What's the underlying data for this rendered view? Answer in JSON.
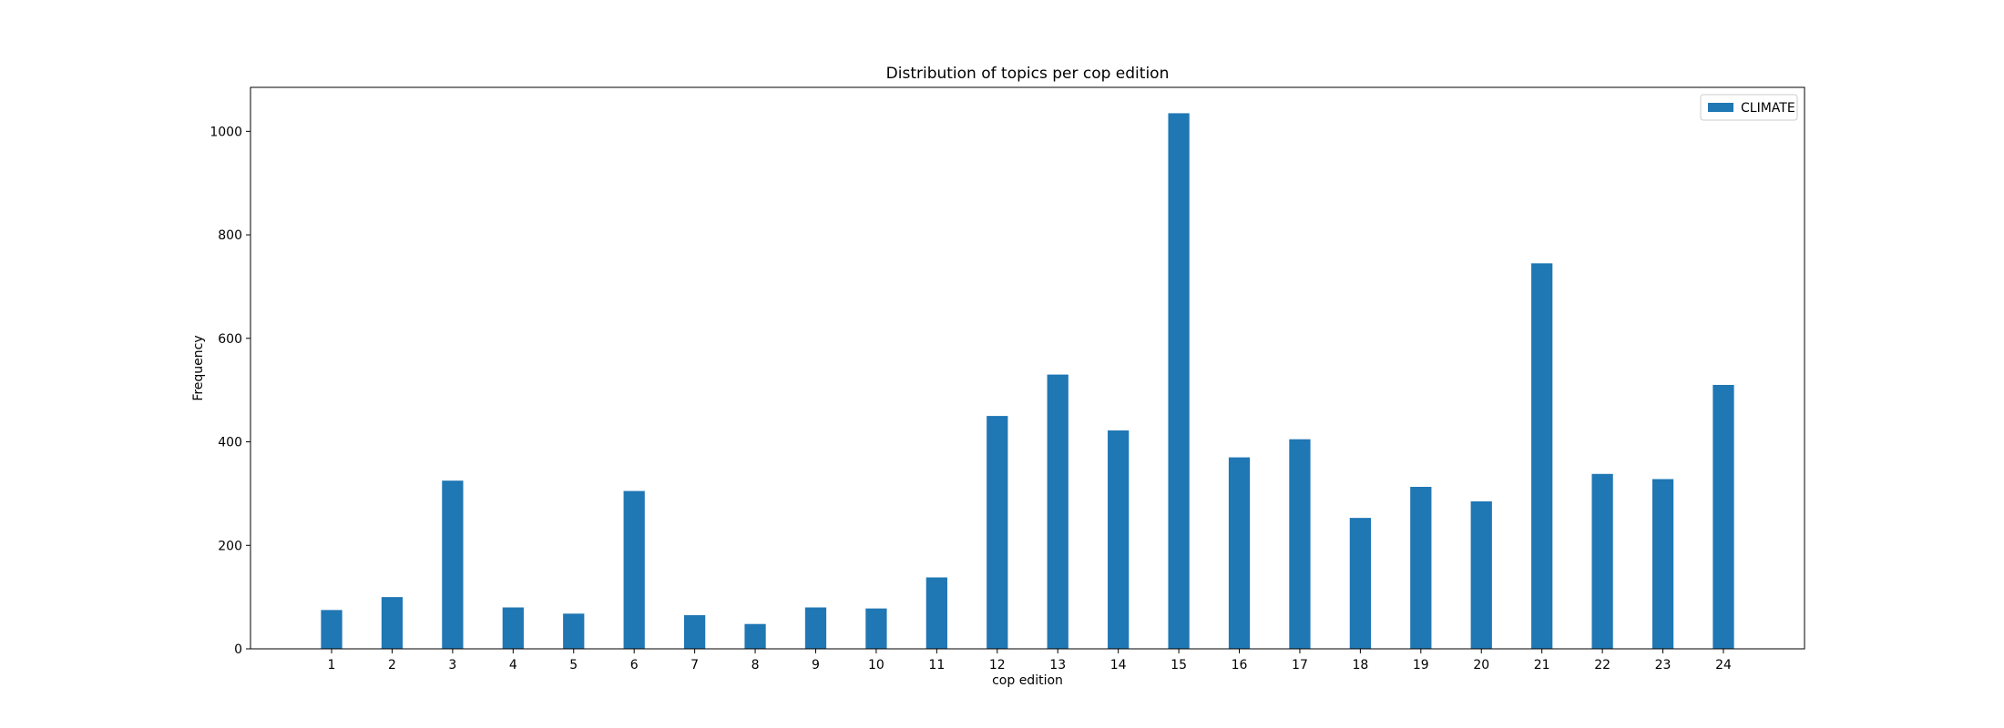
{
  "chart_data": {
    "type": "bar",
    "title": "Distribution of topics per cop edition",
    "xlabel": "cop edition",
    "ylabel": "Frequency",
    "categories": [
      "1",
      "2",
      "3",
      "4",
      "5",
      "6",
      "7",
      "8",
      "9",
      "10",
      "11",
      "12",
      "13",
      "14",
      "15",
      "16",
      "17",
      "18",
      "19",
      "20",
      "21",
      "22",
      "23",
      "24"
    ],
    "series": [
      {
        "name": "CLIMATE",
        "color": "#1f77b4",
        "values": [
          75,
          100,
          325,
          80,
          68,
          305,
          65,
          48,
          80,
          78,
          138,
          450,
          530,
          422,
          1035,
          370,
          405,
          253,
          313,
          285,
          745,
          338,
          328,
          510
        ]
      }
    ],
    "ylim": [
      0,
      1085
    ],
    "yticks": [
      0,
      200,
      400,
      600,
      800,
      1000
    ],
    "grid": false,
    "legend_position": "top-right"
  }
}
